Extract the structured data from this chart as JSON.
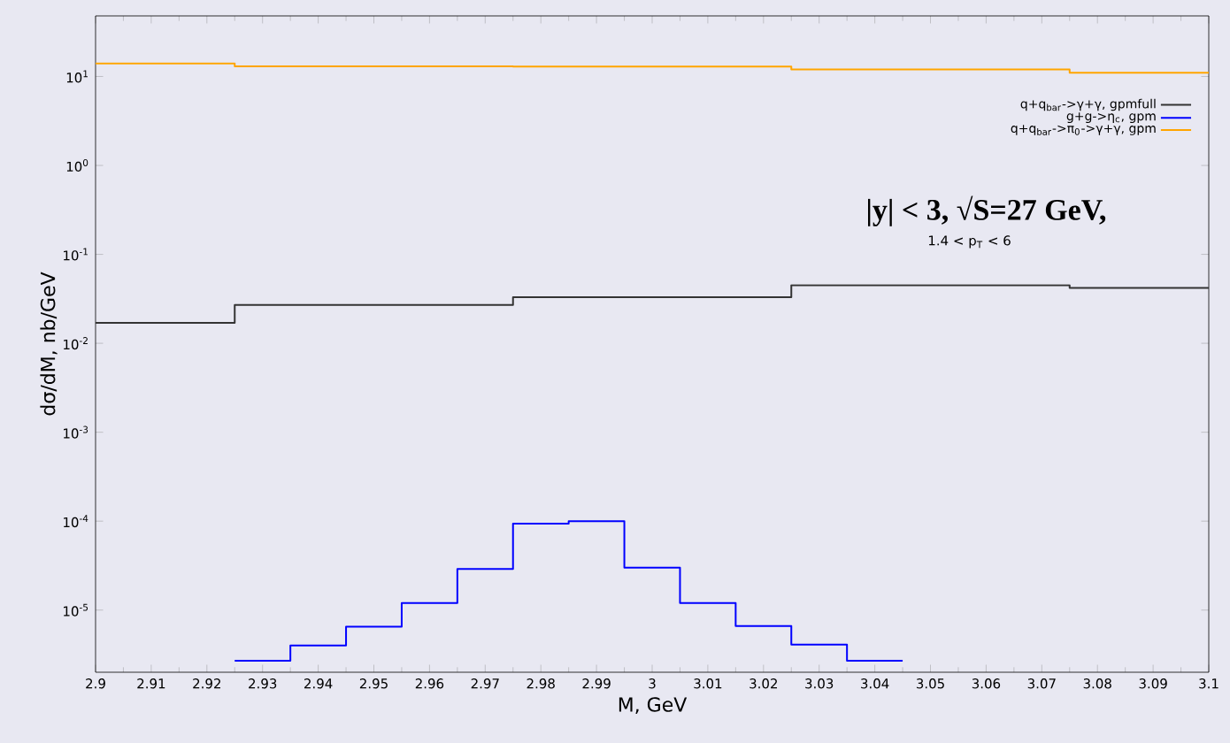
{
  "chart_data": {
    "type": "step",
    "xlabel": "M, GeV",
    "ylabel": "dσ/dM, nb/GeV",
    "annotations": [
      "|y| < 3, √S=27 GeV,",
      "1.4 < p$_{T}$ < 6"
    ],
    "series": [
      {
        "name": "q+q$_{bar}$->γ+γ, gpmfull",
        "color": "#333333",
        "x": [
          2.9,
          2.925,
          2.975,
          3.025,
          3.075,
          3.1
        ],
        "values": [
          0.017,
          0.027,
          0.033,
          0.045,
          0.042,
          0.042
        ]
      },
      {
        "name": "g+g->η$_{c}$, gpm",
        "color": "#0000ff",
        "x": [
          2.925,
          2.935,
          2.945,
          2.955,
          2.965,
          2.975,
          2.985,
          2.995,
          3.005,
          3.015,
          3.025,
          3.035,
          3.045
        ],
        "values": [
          2.7e-06,
          4e-06,
          6.5e-06,
          1.2e-05,
          2.9e-05,
          9.4e-05,
          0.0001,
          3e-05,
          1.2e-05,
          6.6e-06,
          4.1e-06,
          2.7e-06,
          2.7e-06
        ]
      },
      {
        "name": "q+q$_{bar}$->π$_{0}$->γ+γ, gpm",
        "color": "#ffa500",
        "x": [
          2.9,
          2.925,
          2.975,
          3.025,
          3.075,
          3.1
        ],
        "values": [
          14,
          13,
          12.9,
          12,
          11,
          11
        ]
      }
    ],
    "xlim": [
      2.9,
      3.1
    ],
    "ylim": [
      2e-06,
      48
    ],
    "xticks": [
      2.9,
      2.91,
      2.92,
      2.93,
      2.94,
      2.95,
      2.96,
      2.97,
      2.98,
      2.99,
      3,
      3.01,
      3.02,
      3.03,
      3.04,
      3.05,
      3.06,
      3.07,
      3.08,
      3.09,
      3.1
    ],
    "yticks": [
      {
        "value": 1e-05,
        "label": "10$^{-5}$"
      },
      {
        "value": 0.0001,
        "label": "10$^{-4}$"
      },
      {
        "value": 0.001,
        "label": "10$^{-3}$"
      },
      {
        "value": 0.01,
        "label": "10$^{-2}$"
      },
      {
        "value": 0.1,
        "label": "10$^{-1}$"
      },
      {
        "value": 1,
        "label": "10$^{0}$"
      },
      {
        "value": 10,
        "label": "10$^{1}$"
      }
    ],
    "log": "y",
    "legend": "top right",
    "line_style": "solid",
    "marker": "none"
  }
}
